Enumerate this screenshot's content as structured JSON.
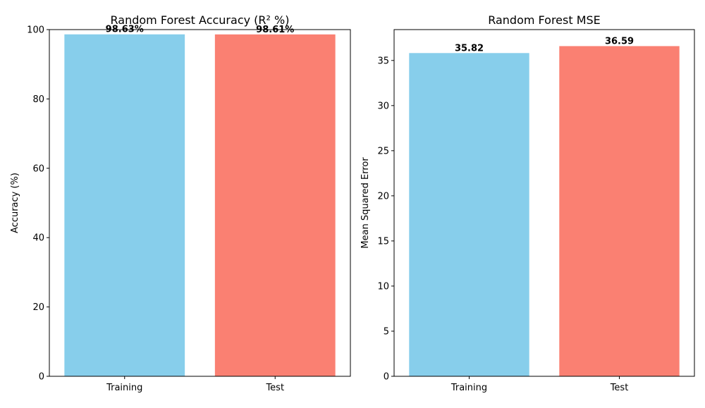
{
  "chart_data": [
    {
      "type": "bar",
      "title": "Random Forest Accuracy (R² %)",
      "xlabel": "",
      "ylabel": "Accuracy (%)",
      "categories": [
        "Training",
        "Test"
      ],
      "values": [
        98.63,
        98.61
      ],
      "bar_labels": [
        "98.63%",
        "98.61%"
      ],
      "ylim": [
        0,
        100
      ],
      "yticks": [
        0,
        20,
        40,
        60,
        80,
        100
      ],
      "ytick_labels": [
        "0",
        "20",
        "40",
        "60",
        "80",
        "100"
      ],
      "bar_colors": [
        "#87ceeb",
        "#fa8072"
      ],
      "grid": false
    },
    {
      "type": "bar",
      "title": "Random Forest MSE",
      "xlabel": "",
      "ylabel": "Mean Squared Error",
      "categories": [
        "Training",
        "Test"
      ],
      "values": [
        35.82,
        36.59
      ],
      "bar_labels": [
        "35.82",
        "36.59"
      ],
      "ylim": [
        0,
        38.42
      ],
      "yticks": [
        0,
        5,
        10,
        15,
        20,
        25,
        30,
        35
      ],
      "ytick_labels": [
        "0",
        "5",
        "10",
        "15",
        "20",
        "25",
        "30",
        "35"
      ],
      "bar_colors": [
        "#87ceeb",
        "#fa8072"
      ],
      "grid": false
    }
  ]
}
